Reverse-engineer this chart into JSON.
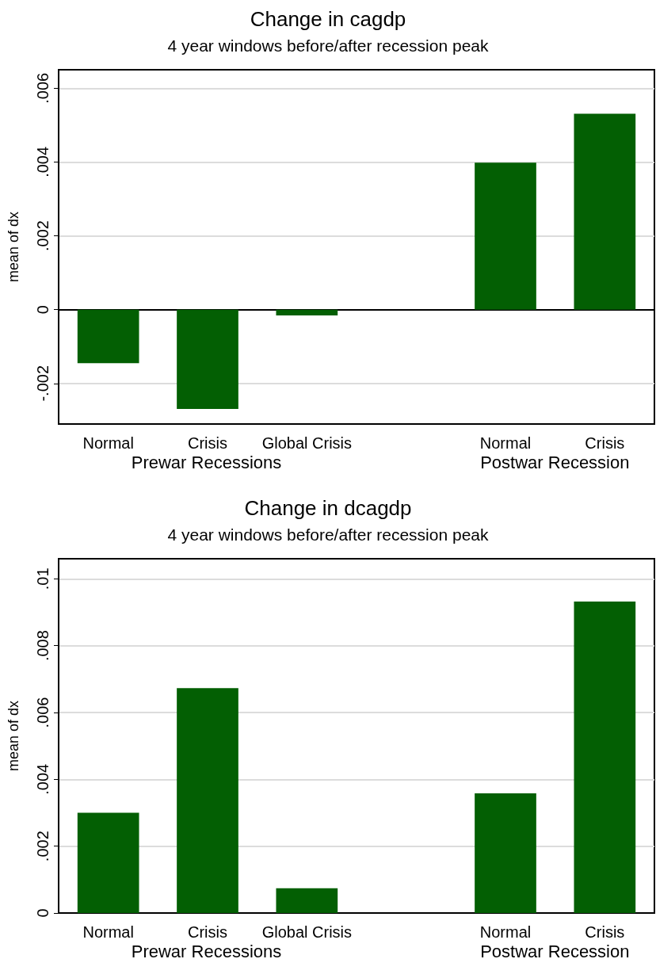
{
  "chart_data": [
    {
      "type": "bar",
      "title": "Change in cagdp",
      "subtitle": "4 year windows before/after recession peak",
      "ylabel": "mean of dx",
      "categories": [
        "Normal",
        "Crisis",
        "Global Crisis",
        null,
        "Normal",
        "Crisis"
      ],
      "values": [
        -0.00145,
        -0.00269,
        -0.00016,
        null,
        0.00398,
        0.00531
      ],
      "color": "#035f03",
      "ylim": [
        -0.0031,
        0.0065
      ],
      "yticks": [
        {
          "value": -0.002,
          "label": "-.002"
        },
        0,
        {
          "value": 0.002,
          "label": ".002"
        },
        {
          "value": 0.004,
          "label": ".004"
        },
        {
          "value": 0.006,
          "label": ".006"
        }
      ],
      "grid": "y",
      "annotations": [
        "Prewar Recessions",
        "Postwar Recession"
      ]
    },
    {
      "type": "bar",
      "title": "Change in dcagdp",
      "subtitle": "4 year windows before/after recession peak",
      "ylabel": "mean of dx",
      "categories": [
        "Normal",
        "Crisis",
        "Global Crisis",
        null,
        "Normal",
        "Crisis"
      ],
      "values": [
        0.003,
        0.00673,
        0.00074,
        null,
        0.00358,
        0.00932
      ],
      "color": "#035f03",
      "ylim": [
        0,
        0.0106
      ],
      "yticks": [
        0,
        {
          "value": 0.002,
          "label": ".002"
        },
        {
          "value": 0.004,
          "label": ".004"
        },
        {
          "value": 0.006,
          "label": ".006"
        },
        {
          "value": 0.008,
          "label": ".008"
        },
        {
          "value": 0.01,
          "label": ".01"
        }
      ],
      "grid": "y",
      "annotations": [
        "Prewar Recessions",
        "Postwar Recession"
      ]
    }
  ]
}
